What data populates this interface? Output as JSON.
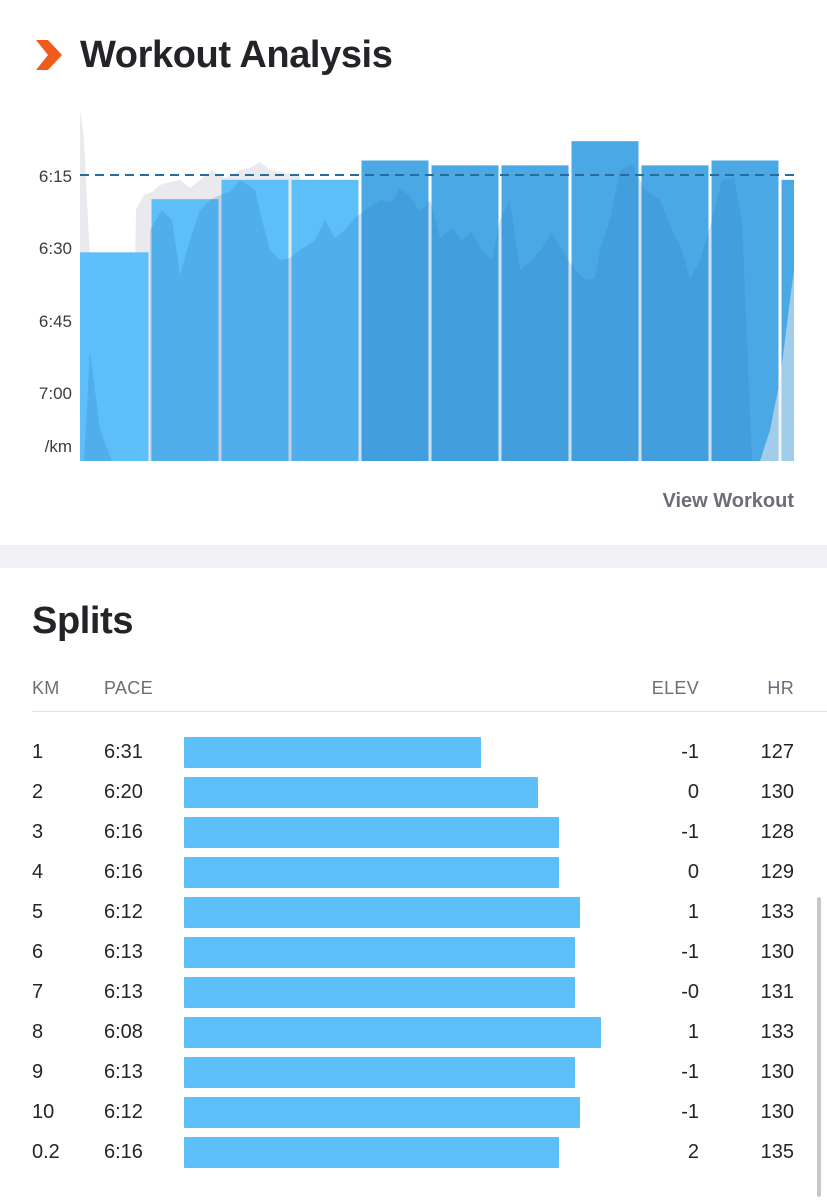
{
  "header": {
    "title": "Workout Analysis",
    "icon": "chevron-right-icon",
    "icon_color": "#f05a1c"
  },
  "chart_data": {
    "type": "bar",
    "categories": [
      "1",
      "2",
      "3",
      "4",
      "5",
      "6",
      "7",
      "8",
      "9",
      "10",
      "0.2"
    ],
    "pace_seconds": [
      391,
      380,
      376,
      376,
      372,
      373,
      373,
      368,
      373,
      372,
      376
    ],
    "yticks": [
      "6:15",
      "6:30",
      "6:45",
      "7:00"
    ],
    "yunit": "/km",
    "average_pace": "6:15",
    "colors": {
      "bar_light": "#5cbff8",
      "bar_dark": "#4aa9e5",
      "trace_light": "#e9e9ee",
      "avg_line": "#2a6b9c"
    }
  },
  "view_workout": "View Workout",
  "splits": {
    "title": "Splits",
    "headers": {
      "km": "KM",
      "pace": "PACE",
      "elev": "ELEV",
      "hr": "HR"
    },
    "rows": [
      {
        "km": "1",
        "pace": "6:31",
        "elev": "-1",
        "hr": "127",
        "pace_sec": 391
      },
      {
        "km": "2",
        "pace": "6:20",
        "elev": "0",
        "hr": "130",
        "pace_sec": 380
      },
      {
        "km": "3",
        "pace": "6:16",
        "elev": "-1",
        "hr": "128",
        "pace_sec": 376
      },
      {
        "km": "4",
        "pace": "6:16",
        "elev": "0",
        "hr": "129",
        "pace_sec": 376
      },
      {
        "km": "5",
        "pace": "6:12",
        "elev": "1",
        "hr": "133",
        "pace_sec": 372
      },
      {
        "km": "6",
        "pace": "6:13",
        "elev": "-1",
        "hr": "130",
        "pace_sec": 373
      },
      {
        "km": "7",
        "pace": "6:13",
        "elev": "-0",
        "hr": "131",
        "pace_sec": 373
      },
      {
        "km": "8",
        "pace": "6:08",
        "elev": "1",
        "hr": "133",
        "pace_sec": 368
      },
      {
        "km": "9",
        "pace": "6:13",
        "elev": "-1",
        "hr": "130",
        "pace_sec": 373
      },
      {
        "km": "10",
        "pace": "6:12",
        "elev": "-1",
        "hr": "130",
        "pace_sec": 372
      },
      {
        "km": "0.2",
        "pace": "6:16",
        "elev": "2",
        "hr": "135",
        "pace_sec": 376
      }
    ]
  }
}
